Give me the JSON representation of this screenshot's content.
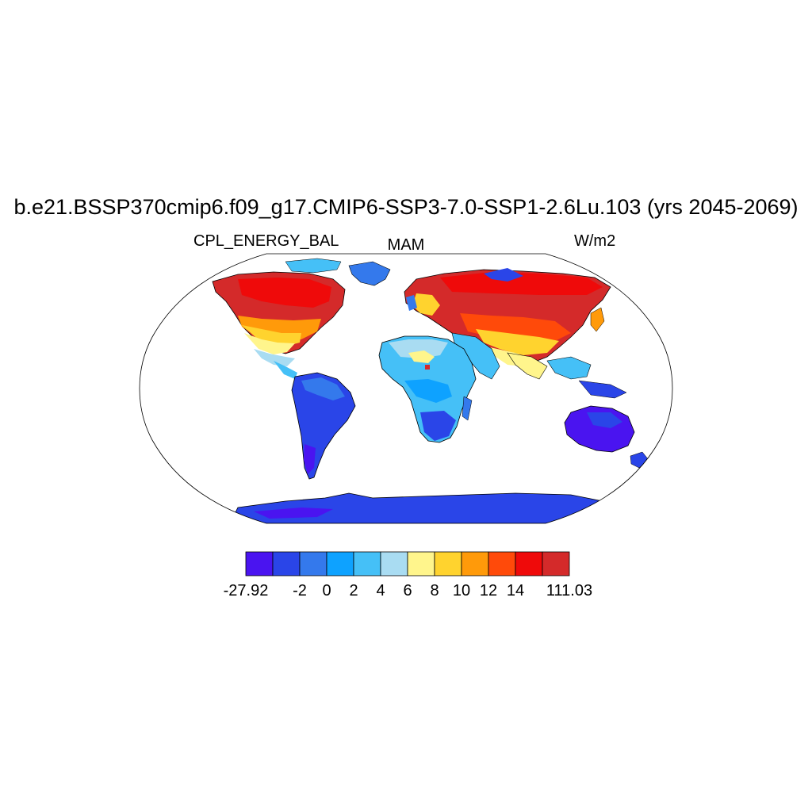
{
  "title": "b.e21.BSSP370cmip6.f09_g17.CMIP6-SSP3-7.0-SSP1-2.6Lu.103 (yrs 2045-2069)",
  "left_string": "CPL_ENERGY_BAL",
  "center_string": "MAM",
  "right_string": "W/m2",
  "colorbar": {
    "colors": [
      "#4a14f0",
      "#2a45e8",
      "#3479ec",
      "#0ea2ff",
      "#45c0f7",
      "#a9dcf2",
      "#fff58c",
      "#ffd32e",
      "#ff9a0a",
      "#ff4a0a",
      "#ef0a0a",
      "#d42a2a"
    ],
    "labels": [
      "-27.92",
      "-2",
      "0",
      "2",
      "4",
      "6",
      "8",
      "10",
      "12",
      "14",
      "111.03"
    ]
  },
  "map": {
    "projection": "Robinson",
    "ocean_color": "#ffffff",
    "outline_color": "#000000"
  }
}
